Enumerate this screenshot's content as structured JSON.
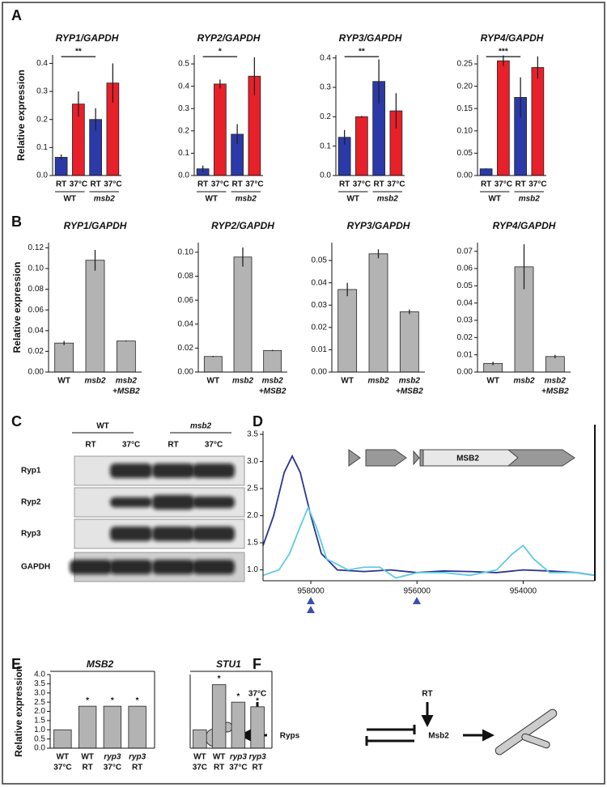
{
  "panels": [
    "A",
    "B",
    "C",
    "D",
    "E",
    "F"
  ],
  "chart_data": [
    {
      "type": "bar",
      "title": "RYP1/GAPDH",
      "ylabel": "Relative  expression",
      "categories": [
        [
          "RT"
        ],
        [
          "37°C"
        ],
        [
          "RT"
        ],
        [
          "37°C"
        ]
      ],
      "groups": [
        "WT",
        "msb2"
      ],
      "values": [
        0.065,
        0.255,
        0.2,
        0.33
      ],
      "errors": [
        0.01,
        0.045,
        0.04,
        0.07
      ],
      "color": [
        "#2b3aa8",
        "#e8202a",
        "#2b3aa8",
        "#e8202a"
      ],
      "annotation": "**",
      "ylim": [
        0,
        0.43
      ],
      "yticks": [
        {
          "value": 0,
          "label": "0.0"
        },
        0.1,
        0.2,
        0.3,
        0.4
      ]
    },
    {
      "type": "bar",
      "title": "RYP2/GAPDH",
      "categories": [
        [
          "RT"
        ],
        [
          "37°C"
        ],
        [
          "RT"
        ],
        [
          "37°C"
        ]
      ],
      "groups": [
        "WT",
        "msb2"
      ],
      "values": [
        0.03,
        0.41,
        0.185,
        0.445
      ],
      "errors": [
        0.015,
        0.02,
        0.045,
        0.085
      ],
      "color": [
        "#2b3aa8",
        "#e8202a",
        "#2b3aa8",
        "#e8202a"
      ],
      "annotation": "*",
      "ylim": [
        0,
        0.54
      ],
      "yticks": [
        {
          "value": 0,
          "label": "0.0"
        },
        0.1,
        0.2,
        0.3,
        0.4,
        0.5
      ]
    },
    {
      "type": "bar",
      "title": "RYP3/GAPDH",
      "categories": [
        [
          "RT"
        ],
        [
          "37°C"
        ],
        [
          "RT"
        ],
        [
          "37°C"
        ]
      ],
      "groups": [
        "WT",
        "msb2"
      ],
      "values": [
        0.13,
        0.2,
        0.32,
        0.22
      ],
      "errors": [
        0.025,
        0.003,
        0.075,
        0.06
      ],
      "color": [
        "#2b3aa8",
        "#e8202a",
        "#2b3aa8",
        "#e8202a"
      ],
      "annotation": "**",
      "ylim": [
        0,
        0.41
      ],
      "yticks": [
        {
          "value": 0,
          "label": "0.0"
        },
        0.1,
        0.2,
        0.3,
        0.4
      ]
    },
    {
      "type": "bar",
      "title": "RYP4/GAPDH",
      "categories": [
        [
          "RT"
        ],
        [
          "37°C"
        ],
        [
          "RT"
        ],
        [
          "37°C"
        ]
      ],
      "groups": [
        "WT",
        "msb2"
      ],
      "values": [
        0.015,
        0.257,
        0.175,
        0.242
      ],
      "errors": [
        0.001,
        0.012,
        0.045,
        0.025
      ],
      "color": [
        "#2b3aa8",
        "#e8202a",
        "#2b3aa8",
        "#e8202a"
      ],
      "annotation": "***",
      "ylim": [
        0,
        0.27
      ],
      "yticks": [
        {
          "value": 0,
          "label": "0.00"
        },
        0.05,
        {
          "value": 0.1,
          "label": "0.10"
        },
        0.15,
        {
          "value": 0.2,
          "label": "0.20"
        },
        0.25
      ]
    },
    {
      "type": "bar",
      "title": "RYP1/GAPDH",
      "ylabel": "Relative expression",
      "categories": [
        [
          "WT"
        ],
        [
          "msb2"
        ],
        [
          "msb2",
          "+MSB2"
        ]
      ],
      "values": [
        0.028,
        0.108,
        0.03
      ],
      "errors": [
        0.002,
        0.01,
        0.0005
      ],
      "color": "#b3b3b3",
      "ylim": [
        0,
        0.125
      ],
      "yticks": [
        {
          "value": 0,
          "label": "0.00"
        },
        0.02,
        0.04,
        0.06,
        0.08,
        {
          "value": 0.1,
          "label": "0.10"
        },
        0.12
      ]
    },
    {
      "type": "bar",
      "title": "RYP2/GAPDH",
      "categories": [
        [
          "WT"
        ],
        [
          "msb2"
        ],
        [
          "msb2",
          "+MSB2"
        ]
      ],
      "values": [
        0.013,
        0.096,
        0.018
      ],
      "errors": [
        0.0005,
        0.008,
        0.0005
      ],
      "color": "#b3b3b3",
      "ylim": [
        0,
        0.108
      ],
      "yticks": [
        {
          "value": 0,
          "label": "0.00"
        },
        0.02,
        0.04,
        0.06,
        0.08,
        {
          "value": 0.1,
          "label": "0.10"
        }
      ]
    },
    {
      "type": "bar",
      "title": "RYP3/GAPDH",
      "categories": [
        [
          "WT"
        ],
        [
          "msb2"
        ],
        [
          "msb2",
          "+MSB2"
        ]
      ],
      "values": [
        0.037,
        0.053,
        0.027
      ],
      "errors": [
        0.003,
        0.002,
        0.001
      ],
      "color": "#b3b3b3",
      "ylim": [
        0,
        0.058
      ],
      "yticks": [
        {
          "value": 0,
          "label": "0.00"
        },
        0.01,
        0.02,
        0.03,
        0.04,
        0.05
      ]
    },
    {
      "type": "bar",
      "title": "RYP4/GAPDH",
      "categories": [
        [
          "WT"
        ],
        [
          "msb2"
        ],
        [
          "msb2",
          "+MSB2"
        ]
      ],
      "values": [
        0.005,
        0.061,
        0.009
      ],
      "errors": [
        0.001,
        0.013,
        0.001
      ],
      "color": "#b3b3b3",
      "ylim": [
        0,
        0.075
      ],
      "yticks": [
        {
          "value": 0,
          "label": "0.00"
        },
        0.01,
        0.02,
        0.03,
        0.04,
        0.05,
        0.06,
        0.07
      ]
    },
    {
      "type": "line",
      "annotation": "MSB2",
      "xlim": [
        958900,
        952650
      ],
      "xticks": [
        958000,
        956000,
        954000
      ],
      "ylim": [
        0.8,
        3.56
      ],
      "yticks": [
        {
          "value": 1,
          "label": "1.0"
        },
        1.5,
        {
          "value": 2,
          "label": "2.0"
        },
        2.5,
        {
          "value": 3,
          "label": "3.0"
        },
        3.5
      ],
      "series": [
        {
          "color": "#2b3590",
          "x": [
            958900,
            958700,
            958500,
            958350,
            958200,
            958000,
            957800,
            957500,
            957000,
            956500,
            956000,
            955500,
            955000,
            954500,
            954000,
            953500,
            953000,
            952650
          ],
          "values": [
            1.45,
            2.0,
            2.8,
            3.1,
            2.8,
            2.0,
            1.3,
            1.0,
            0.97,
            1.0,
            0.95,
            0.98,
            0.97,
            0.95,
            1.0,
            0.98,
            0.95,
            0.9
          ]
        },
        {
          "color": "#5fcbe0",
          "x": [
            958900,
            958600,
            958400,
            958200,
            958050,
            957900,
            957700,
            957300,
            957000,
            956700,
            956400,
            956000,
            955500,
            955000,
            954500,
            954200,
            954000,
            953800,
            953500,
            953000,
            952650
          ],
          "values": [
            0.9,
            1.0,
            1.3,
            1.8,
            2.15,
            1.8,
            1.2,
            1.0,
            1.05,
            1.05,
            0.85,
            0.95,
            0.95,
            0.9,
            1.0,
            1.3,
            1.45,
            1.2,
            0.95,
            0.95,
            0.9
          ]
        }
      ]
    },
    {
      "type": "bar",
      "title": "MSB2",
      "ylabel": "Relative expression",
      "categories": [
        [
          "WT",
          "37°C"
        ],
        [
          "WT",
          "RT"
        ],
        [
          "ryp3",
          "37°C"
        ],
        [
          "ryp3",
          "RT"
        ]
      ],
      "values": [
        1.0,
        2.28,
        2.28,
        2.28
      ],
      "annotations": [
        null,
        "*",
        "*",
        "*"
      ],
      "color": "#b3b3b3",
      "ylim": [
        0,
        4.0
      ],
      "yticks": [
        {
          "value": 0,
          "label": "0.0"
        },
        0.5,
        {
          "value": 1,
          "label": "1.0"
        },
        1.5,
        {
          "value": 2,
          "label": "2.0"
        },
        2.5,
        {
          "value": 3,
          "label": "3.0"
        },
        3.5,
        {
          "value": 4,
          "label": "4.0"
        }
      ]
    },
    {
      "type": "bar",
      "title": "STU1",
      "categories": [
        [
          "WT",
          "37C"
        ],
        [
          "WT",
          "RT"
        ],
        [
          "ryp3",
          "37°C"
        ],
        [
          "ryp3",
          "RT"
        ]
      ],
      "values": [
        1.0,
        3.45,
        2.5,
        2.25
      ],
      "annotations": [
        null,
        "*",
        "*",
        "*"
      ],
      "color": "#b3b3b3",
      "ylim": [
        0,
        4.0
      ]
    }
  ],
  "blot": {
    "groups": [
      "WT",
      "msb2"
    ],
    "lanes": [
      "RT",
      "37°C",
      "RT",
      "37°C"
    ],
    "rows": [
      "Ryp1",
      "Ryp2",
      "Ryp3",
      "GAPDH"
    ]
  },
  "pathway": {
    "inputs": [
      "37°C",
      "RT"
    ],
    "nodes": [
      "Ryps",
      "Msb2"
    ]
  }
}
